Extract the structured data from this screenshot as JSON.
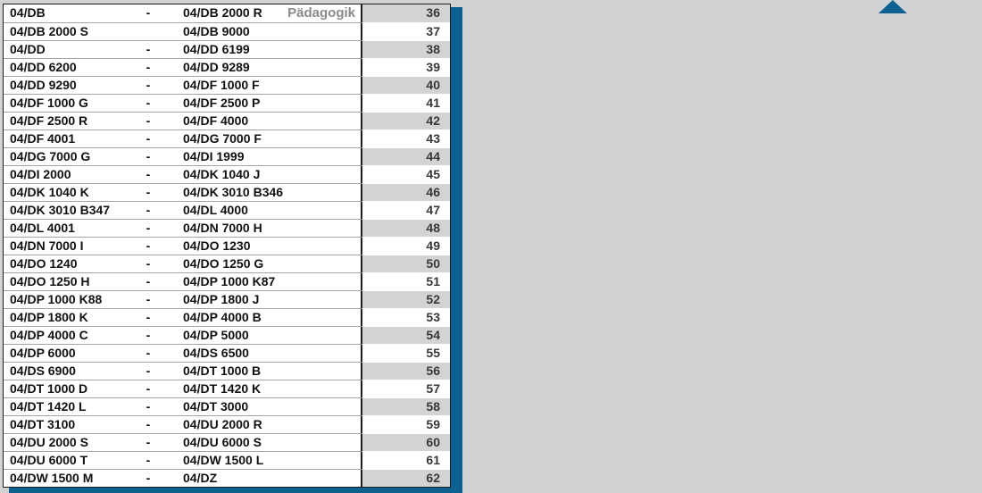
{
  "colors": {
    "page_background": "#d0d2d4",
    "accent_blue": "#0d6191",
    "alt_row_gray": "#d1d3d4",
    "category_label_gray": "#888a8c",
    "number_text": "#383838",
    "border_dark": "#1c1c1c",
    "row_divider_gray": "#a3a6a8"
  },
  "icons": {
    "scroll_up": "triangle-up-icon"
  },
  "shelf_table": {
    "rows": [
      {
        "num": "36",
        "from": "04/DB",
        "dash": "-",
        "to": "04/DB 2000 R",
        "category": "Pädagogik"
      },
      {
        "num": "37",
        "from": "04/DB 2000 S",
        "dash": "",
        "to": "04/DB 9000",
        "category": ""
      },
      {
        "num": "38",
        "from": "04/DD",
        "dash": "-",
        "to": "04/DD 6199",
        "category": ""
      },
      {
        "num": "39",
        "from": "04/DD 6200",
        "dash": "-",
        "to": "04/DD 9289",
        "category": ""
      },
      {
        "num": "40",
        "from": "04/DD 9290",
        "dash": "-",
        "to": "04/DF 1000 F",
        "category": ""
      },
      {
        "num": "41",
        "from": "04/DF 1000 G",
        "dash": "-",
        "to": "04/DF 2500 P",
        "category": ""
      },
      {
        "num": "42",
        "from": "04/DF 2500 R",
        "dash": "-",
        "to": "04/DF 4000",
        "category": ""
      },
      {
        "num": "43",
        "from": "04/DF 4001",
        "dash": "-",
        "to": "04/DG 7000 F",
        "category": ""
      },
      {
        "num": "44",
        "from": "04/DG 7000 G",
        "dash": "-",
        "to": "04/DI 1999",
        "category": ""
      },
      {
        "num": "45",
        "from": "04/DI 2000",
        "dash": "-",
        "to": "04/DK 1040 J",
        "category": ""
      },
      {
        "num": "46",
        "from": "04/DK 1040 K",
        "dash": "-",
        "to": "04/DK 3010 B346",
        "category": ""
      },
      {
        "num": "47",
        "from": "04/DK 3010 B347",
        "dash": "-",
        "to": "04/DL 4000",
        "category": ""
      },
      {
        "num": "48",
        "from": "04/DL 4001",
        "dash": "-",
        "to": "04/DN 7000 H",
        "category": ""
      },
      {
        "num": "49",
        "from": "04/DN 7000 I",
        "dash": "-",
        "to": "04/DO 1230",
        "category": ""
      },
      {
        "num": "50",
        "from": "04/DO 1240",
        "dash": "-",
        "to": "04/DO 1250 G",
        "category": ""
      },
      {
        "num": "51",
        "from": "04/DO 1250 H",
        "dash": "-",
        "to": "04/DP 1000 K87",
        "category": ""
      },
      {
        "num": "52",
        "from": "04/DP 1000 K88",
        "dash": "-",
        "to": "04/DP 1800 J",
        "category": ""
      },
      {
        "num": "53",
        "from": "04/DP 1800 K",
        "dash": "-",
        "to": "04/DP 4000 B",
        "category": ""
      },
      {
        "num": "54",
        "from": "04/DP 4000 C",
        "dash": "-",
        "to": "04/DP 5000",
        "category": ""
      },
      {
        "num": "55",
        "from": "04/DP 6000",
        "dash": "-",
        "to": "04/DS 6500",
        "category": ""
      },
      {
        "num": "56",
        "from": "04/DS 6900",
        "dash": "-",
        "to": "04/DT 1000 B",
        "category": ""
      },
      {
        "num": "57",
        "from": "04/DT 1000 D",
        "dash": "-",
        "to": "04/DT 1420 K",
        "category": ""
      },
      {
        "num": "58",
        "from": "04/DT 1420 L",
        "dash": "-",
        "to": "04/DT 3000",
        "category": ""
      },
      {
        "num": "59",
        "from": "04/DT 3100",
        "dash": "-",
        "to": "04/DU 2000 R",
        "category": ""
      },
      {
        "num": "60",
        "from": "04/DU 2000 S",
        "dash": "-",
        "to": "04/DU 6000 S",
        "category": ""
      },
      {
        "num": "61",
        "from": "04/DU 6000 T",
        "dash": "-",
        "to": "04/DW 1500 L",
        "category": ""
      },
      {
        "num": "62",
        "from": "04/DW 1500 M",
        "dash": "-",
        "to": "04/DZ",
        "category": ""
      }
    ]
  }
}
